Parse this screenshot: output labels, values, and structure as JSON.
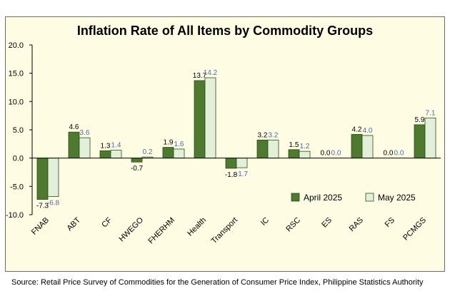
{
  "chart_data": {
    "type": "bar",
    "title": "Inflation Rate of All Items by Commodity Groups",
    "categories": [
      "FNAB",
      "ABT",
      "CF",
      "HWEGO",
      "FHERHM",
      "Health",
      "Transport",
      "IC",
      "RSC",
      "ES",
      "RAS",
      "FS",
      "PCMGS"
    ],
    "series": [
      {
        "name": "April 2025",
        "values": [
          -7.3,
          4.6,
          1.3,
          -0.7,
          1.9,
          13.7,
          -1.8,
          3.2,
          1.5,
          0.0,
          4.2,
          0.0,
          5.9
        ],
        "labels": [
          "-7.3",
          "4.6",
          "1.3",
          "-0.7",
          "1.9",
          "13.7",
          "-1.8",
          "3.2",
          "1.5",
          "0.0",
          "4.2",
          "0.0",
          "5.9"
        ]
      },
      {
        "name": "May 2025",
        "values": [
          -6.8,
          3.6,
          1.4,
          0.2,
          1.6,
          14.2,
          -1.7,
          3.2,
          1.2,
          0.0,
          4.0,
          0.0,
          7.1
        ],
        "labels": [
          "-6.8",
          "3.6",
          "1.4",
          "0.2",
          "1.6",
          "14.2",
          "-1.7",
          "3.2",
          "1.2",
          "0.0",
          "4.0",
          "0.0",
          "7.1"
        ]
      }
    ],
    "ylim": [
      -10,
      20
    ],
    "yticks": [
      "20.0",
      "15.0",
      "10.0",
      "5.0",
      "0.0",
      "-5.0",
      "-10.0"
    ],
    "xlabel": "",
    "ylabel": "",
    "grid": false,
    "legend_position": "bottom-right",
    "colors": {
      "April 2025": "#4d7a2e",
      "May 2025": "#e2f0d9",
      "bar_outline": "#2f4a1c",
      "april_label": "#000000",
      "may_label": "#4f6aa0",
      "panel_background": "#fefce3"
    }
  },
  "source": "Source: Retail Price Survey of Commodities for the Generation of Consumer Price Index, Philippine Statistics Authority"
}
